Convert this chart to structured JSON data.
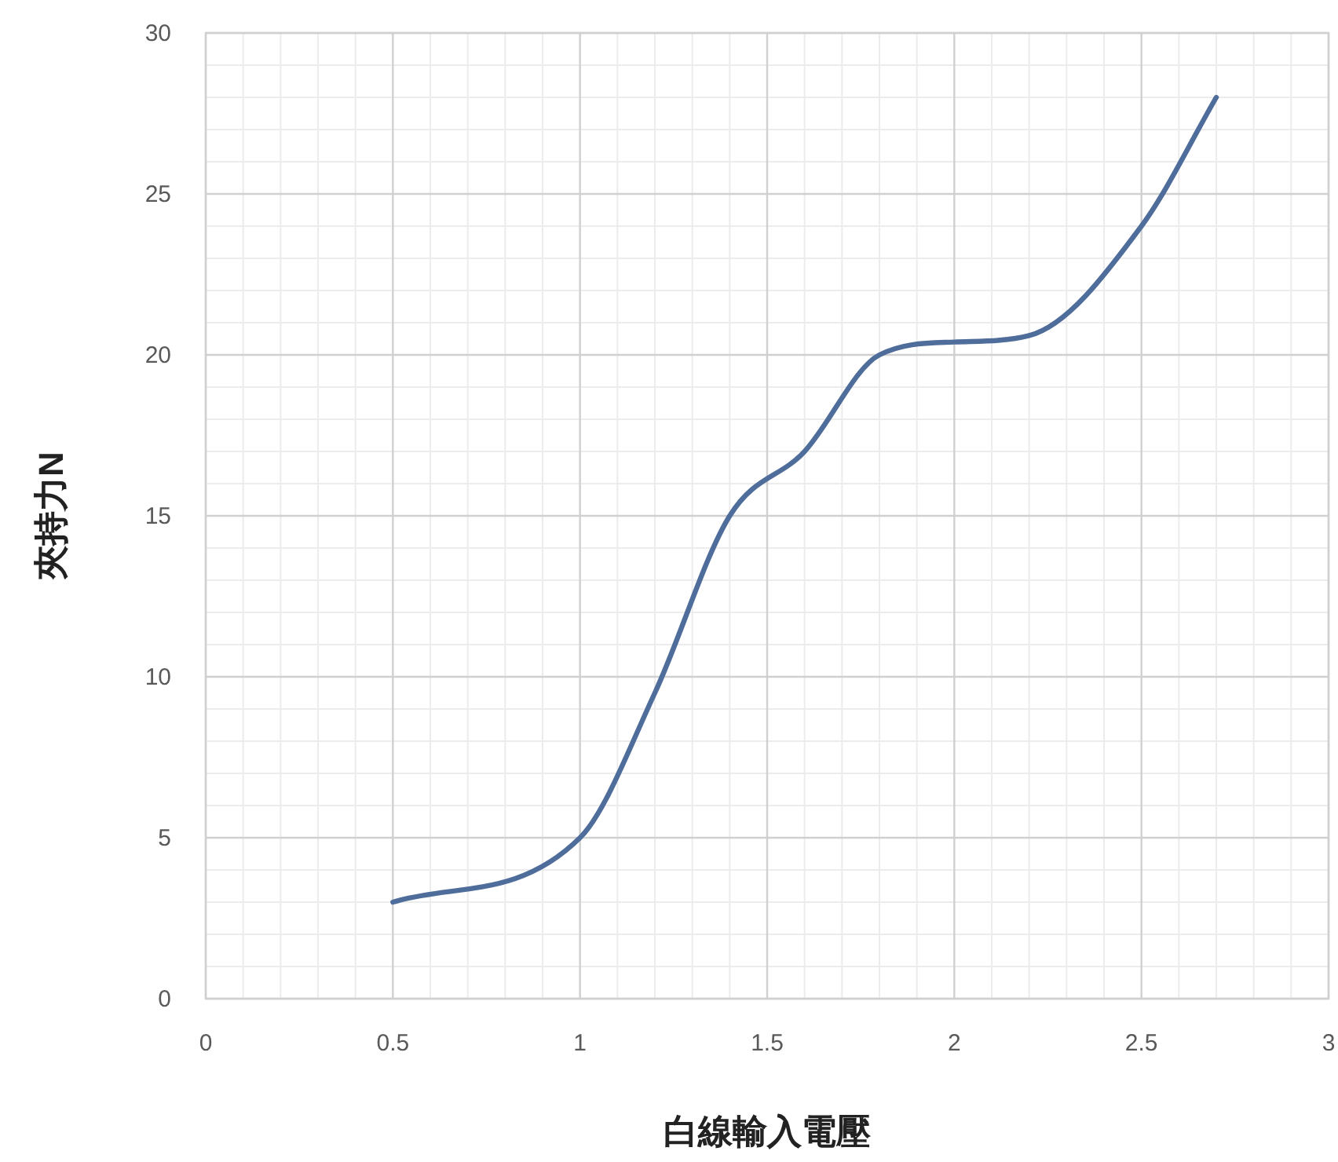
{
  "chart_data": {
    "type": "line",
    "xlabel": "白線輸入電壓",
    "ylabel": "夾持力N",
    "x": [
      0.5,
      1,
      1.2,
      1.4,
      1.6,
      1.8,
      2,
      2.2,
      2.5,
      2.7
    ],
    "series": [
      {
        "color": "#4f6d9a",
        "values": [
          3,
          5,
          9.5,
          15,
          17,
          20,
          20.4,
          20.6,
          24,
          28
        ]
      }
    ],
    "xlim": [
      0,
      3
    ],
    "ylim": [
      0,
      30
    ],
    "xticks": [
      0,
      0.5,
      1,
      1.5,
      2,
      2.5,
      3
    ],
    "yticks": [
      0,
      5,
      10,
      15,
      20,
      25,
      30
    ],
    "grid": true,
    "marker": "none",
    "line_style": "solid"
  }
}
